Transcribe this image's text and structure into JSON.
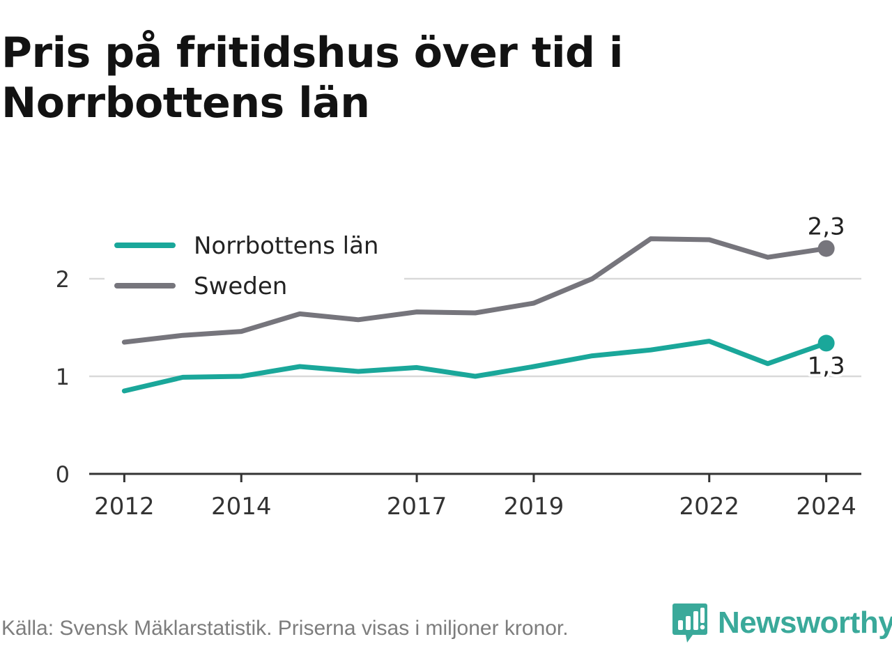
{
  "chart_data": {
    "type": "line",
    "title": "Pris på fritidshus över tid i Norrbottens län",
    "x": [
      2012,
      2013,
      2014,
      2015,
      2016,
      2017,
      2018,
      2019,
      2020,
      2021,
      2022,
      2023,
      2024
    ],
    "x_tick_labels": [
      "2012",
      "2014",
      "2017",
      "2019",
      "2022",
      "2024"
    ],
    "x_ticks": [
      2012,
      2014,
      2017,
      2019,
      2022,
      2024
    ],
    "y_tick_labels": [
      "0",
      "1",
      "2"
    ],
    "y_ticks": [
      0,
      1,
      2
    ],
    "ylim": [
      0,
      2.5
    ],
    "xlim": [
      2011.4,
      2024.6
    ],
    "grid": true,
    "legend_position": "top-left",
    "series": [
      {
        "name": "Norrbottens län",
        "color": "#1aa79a",
        "values": [
          0.85,
          0.99,
          1.0,
          1.1,
          1.05,
          1.09,
          1.0,
          1.1,
          1.21,
          1.27,
          1.36,
          1.13,
          1.34
        ],
        "end_label": "1,3",
        "end_label_position": "below"
      },
      {
        "name": "Sweden",
        "color": "#76757c",
        "values": [
          1.35,
          1.42,
          1.46,
          1.64,
          1.58,
          1.66,
          1.65,
          1.75,
          2.0,
          2.41,
          2.4,
          2.22,
          2.31
        ],
        "end_label": "2,3",
        "end_label_position": "above"
      }
    ]
  },
  "footer": {
    "source": "Källa: Svensk Mäklarstatistik. Priserna visas i miljoner kronor.",
    "brand": "Newsworthy",
    "brand_color": "#3aa99a",
    "brand_icon": "newsworthy-logo-icon"
  }
}
